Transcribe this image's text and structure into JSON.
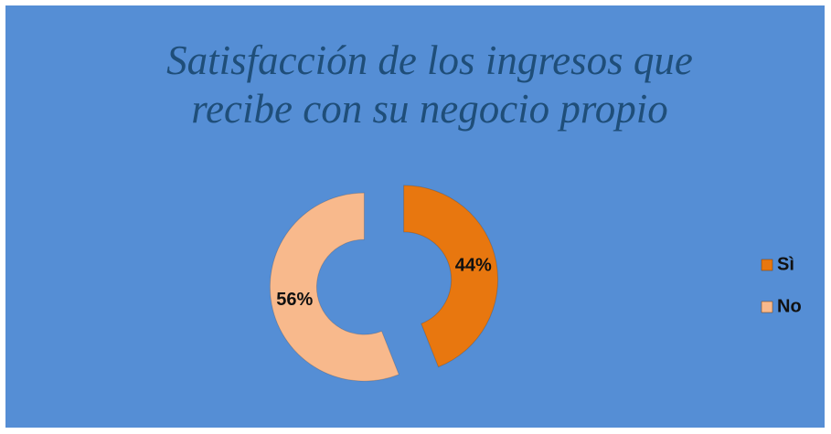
{
  "chart_data": {
    "type": "donut",
    "title": "Satisfacción de los ingresos que recibe con su negocio propio",
    "series": [
      {
        "name": "Sì",
        "color": "#e8770f",
        "values": [
          44
        ],
        "value_labels": [
          "44%"
        ]
      },
      {
        "name": "No",
        "color": "#f8b98c",
        "values": [
          56
        ],
        "value_labels": [
          "56%"
        ]
      }
    ],
    "legend": "right"
  }
}
